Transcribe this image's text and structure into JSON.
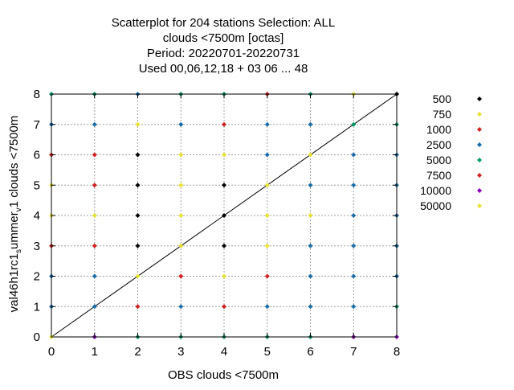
{
  "chart_data": {
    "type": "scatter",
    "title_lines": [
      "Scatterplot for  204 stations Selection: ALL",
      "clouds <7500m [octas]",
      "Period: 20220701-20220731",
      "Used  00,06,12,18  + 03 06 ... 48"
    ],
    "xlabel": "OBS clouds <7500m",
    "ylabel": "val46h1rc1_summer_v1 clouds <7500m",
    "ylabel_display": {
      "prefix": "val46h1rc1",
      "sub1": "s",
      "middle": "ummer",
      "sub2": "v",
      "suffix": "1 clouds <7500m"
    },
    "xlim": [
      0,
      8
    ],
    "ylim": [
      0,
      8
    ],
    "xticks": [
      0,
      1,
      2,
      3,
      4,
      5,
      6,
      7,
      8
    ],
    "yticks": [
      0,
      1,
      2,
      3,
      4,
      5,
      6,
      7,
      8
    ],
    "grid": true,
    "diagonal": true,
    "legend_position": "right",
    "series": [
      {
        "name": "500",
        "color": "#000000",
        "points": [
          [
            2,
            6
          ],
          [
            2,
            5
          ],
          [
            2,
            4
          ],
          [
            2,
            3
          ],
          [
            4,
            5
          ],
          [
            4,
            4
          ],
          [
            4,
            3
          ],
          [
            8,
            8
          ]
        ]
      },
      {
        "name": "750",
        "color": "#e8e030",
        "points": [
          [
            0,
            0
          ],
          [
            0,
            5
          ],
          [
            0,
            4
          ],
          [
            1,
            4
          ],
          [
            2,
            7
          ],
          [
            2,
            2
          ],
          [
            3,
            6
          ],
          [
            3,
            5
          ],
          [
            3,
            4
          ],
          [
            3,
            3
          ],
          [
            4,
            6
          ],
          [
            4,
            2
          ],
          [
            5,
            5
          ],
          [
            5,
            4
          ],
          [
            5,
            3
          ],
          [
            6,
            6
          ],
          [
            6,
            4
          ],
          [
            7,
            8
          ],
          [
            7,
            0
          ]
        ]
      },
      {
        "name": "1000",
        "color": "#d02020",
        "points": [
          [
            0,
            6
          ],
          [
            0,
            3
          ],
          [
            1,
            6
          ],
          [
            1,
            5
          ],
          [
            1,
            3
          ],
          [
            2,
            1
          ],
          [
            3,
            2
          ],
          [
            4,
            7
          ],
          [
            4,
            1
          ],
          [
            5,
            8
          ],
          [
            5,
            2
          ]
        ]
      },
      {
        "name": "2500",
        "color": "#1a6ea8",
        "points": [
          [
            0,
            7
          ],
          [
            0,
            2
          ],
          [
            0,
            1
          ],
          [
            1,
            7
          ],
          [
            1,
            2
          ],
          [
            1,
            1
          ],
          [
            2,
            8
          ],
          [
            3,
            7
          ],
          [
            3,
            1
          ],
          [
            5,
            7
          ],
          [
            5,
            6
          ],
          [
            5,
            1
          ],
          [
            6,
            7
          ],
          [
            6,
            5
          ],
          [
            6,
            3
          ],
          [
            6,
            2
          ],
          [
            6,
            1
          ],
          [
            7,
            6
          ],
          [
            7,
            5
          ],
          [
            7,
            4
          ],
          [
            7,
            3
          ],
          [
            7,
            2
          ],
          [
            7,
            1
          ],
          [
            8,
            6
          ],
          [
            8,
            5
          ],
          [
            8,
            4
          ],
          [
            8,
            3
          ],
          [
            8,
            2
          ]
        ]
      },
      {
        "name": "5000",
        "color": "#009966",
        "points": [
          [
            0,
            8
          ],
          [
            1,
            8
          ],
          [
            2,
            0
          ],
          [
            3,
            8
          ],
          [
            3,
            0
          ],
          [
            4,
            8
          ],
          [
            4,
            0
          ],
          [
            5,
            0
          ],
          [
            6,
            8
          ],
          [
            6,
            0
          ],
          [
            7,
            7
          ],
          [
            8,
            7
          ],
          [
            8,
            1
          ]
        ]
      },
      {
        "name": "7500",
        "color": "#d02020",
        "points": []
      },
      {
        "name": "10000",
        "color": "#8800bb",
        "points": [
          [
            1,
            0
          ],
          [
            7,
            0
          ],
          [
            8,
            0
          ]
        ]
      },
      {
        "name": "50000",
        "color": "#e8e030",
        "points": []
      }
    ]
  }
}
